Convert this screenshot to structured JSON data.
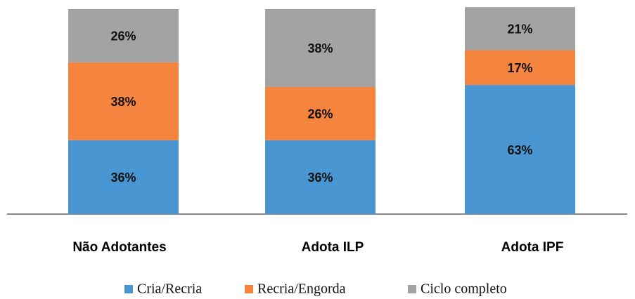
{
  "chart_data": {
    "type": "stacked_bar",
    "categories": [
      "Não Adotantes",
      "Adota ILP",
      "Adota IPF"
    ],
    "series": [
      {
        "name": "Cria/Recria",
        "color": "#4a96d3",
        "values": [
          36,
          36,
          63
        ],
        "value_labels": [
          "36%",
          "36%",
          "63%"
        ]
      },
      {
        "name": "Recria/Engorda",
        "color": "#f4843e",
        "values": [
          38,
          26,
          17
        ],
        "value_labels": [
          "38%",
          "26%",
          "17%"
        ]
      },
      {
        "name": "Ciclo completo",
        "color": "#a3a3a3",
        "values": [
          26,
          38,
          21
        ],
        "value_labels": [
          "26%",
          "38%",
          "21%"
        ]
      }
    ]
  }
}
